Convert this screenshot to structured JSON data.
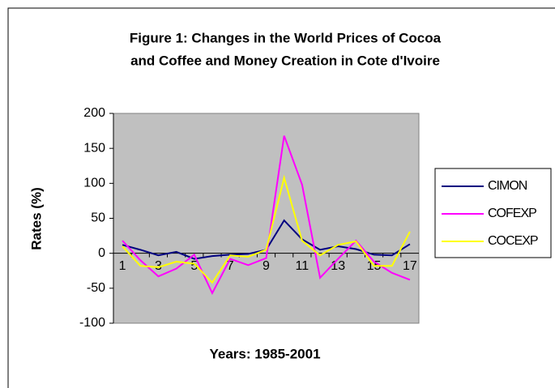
{
  "chart_data": {
    "type": "line",
    "title": [
      "Figure 1: Changes in the World Prices of Cocoa",
      "and Coffee and Money Creation in Cote d'Ivoire"
    ],
    "y_label": "Rates (%)",
    "x_label": "Years: 1985-2001",
    "categories": [
      "1",
      null,
      "3",
      null,
      "5",
      null,
      "7",
      null,
      "9",
      null,
      "11",
      null,
      "13",
      null,
      "15",
      null,
      "17"
    ],
    "series": [
      {
        "name": "CIMON",
        "color": "#000080",
        "values": [
          12,
          5,
          -3,
          2,
          -8,
          -4,
          -2,
          -1,
          5,
          47,
          20,
          5,
          10,
          6,
          -2,
          -3,
          13
        ]
      },
      {
        "name": "COFEXP",
        "color": "#ff00ff",
        "values": [
          18,
          -10,
          -33,
          -22,
          -2,
          -57,
          -8,
          -17,
          -7,
          168,
          98,
          -35,
          -8,
          18,
          -12,
          -28,
          -38
        ]
      },
      {
        "name": "COCEXP",
        "color": "#ffff00",
        "values": [
          10,
          -18,
          -20,
          -12,
          -15,
          -42,
          -3,
          -5,
          5,
          108,
          18,
          -3,
          12,
          17,
          -18,
          -18,
          31
        ]
      }
    ],
    "ylim": [
      -100,
      200
    ],
    "yticks": [
      -100,
      -50,
      0,
      50,
      100,
      150,
      200
    ],
    "grid": false,
    "legend": "right"
  }
}
